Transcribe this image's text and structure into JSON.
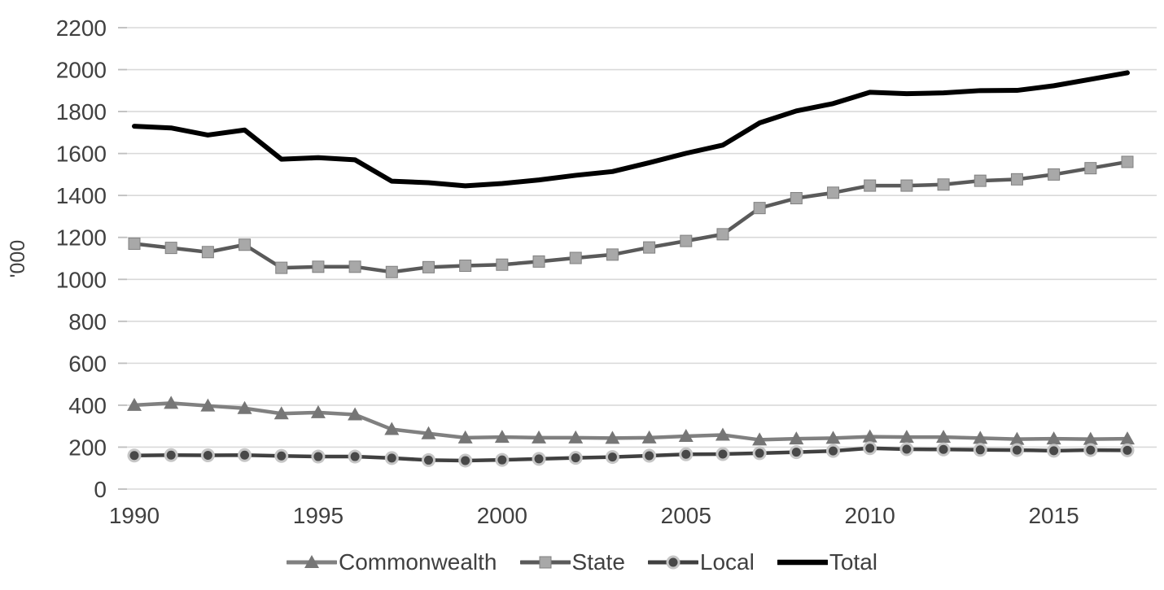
{
  "chart_data": {
    "type": "line",
    "title": "",
    "xlabel": "",
    "ylabel": "'000",
    "ylim": [
      0,
      2200
    ],
    "y_ticks": [
      0,
      200,
      400,
      600,
      800,
      1000,
      1200,
      1400,
      1600,
      1800,
      2000,
      2200
    ],
    "x": [
      1990,
      1991,
      1992,
      1993,
      1994,
      1995,
      1996,
      1997,
      1998,
      1999,
      2000,
      2001,
      2002,
      2003,
      2004,
      2005,
      2006,
      2007,
      2008,
      2009,
      2010,
      2011,
      2012,
      2013,
      2014,
      2015,
      2016,
      2017
    ],
    "x_ticks": [
      1990,
      1995,
      2000,
      2005,
      2010,
      2015
    ],
    "grid": "horizontal",
    "legend_position": "bottom",
    "series": [
      {
        "name": "Commonwealth",
        "marker": "triangle",
        "line_color": "#808080",
        "marker_color": "#767676",
        "line_width": 4.5,
        "values": [
          400,
          410,
          397,
          385,
          360,
          365,
          355,
          285,
          265,
          245,
          248,
          245,
          245,
          243,
          245,
          252,
          258,
          235,
          240,
          243,
          250,
          248,
          248,
          243,
          238,
          240,
          238,
          240
        ]
      },
      {
        "name": "State",
        "marker": "square",
        "line_color": "#5a5a5a",
        "marker_color": "#a8a8a8",
        "marker_edge": "#808080",
        "line_width": 4.5,
        "values": [
          1170,
          1150,
          1130,
          1165,
          1055,
          1060,
          1060,
          1035,
          1058,
          1065,
          1070,
          1085,
          1102,
          1118,
          1152,
          1183,
          1215,
          1340,
          1387,
          1413,
          1447,
          1447,
          1452,
          1470,
          1477,
          1500,
          1530,
          1560
        ]
      },
      {
        "name": "Local",
        "marker": "circle",
        "line_color": "#404040",
        "marker_color": "#484848",
        "marker_ring": "#c6c6c6",
        "line_width": 4.5,
        "values": [
          160,
          162,
          161,
          162,
          158,
          155,
          155,
          148,
          138,
          136,
          139,
          144,
          149,
          153,
          159,
          166,
          167,
          171,
          176,
          182,
          195,
          190,
          189,
          187,
          186,
          183,
          186,
          185
        ]
      },
      {
        "name": "Total",
        "marker": "none",
        "line_color": "#000000",
        "line_width": 6,
        "values": [
          1730,
          1722,
          1688,
          1712,
          1573,
          1580,
          1570,
          1468,
          1461,
          1446,
          1457,
          1474,
          1496,
          1514,
          1556,
          1601,
          1640,
          1746,
          1803,
          1838,
          1892,
          1885,
          1889,
          1900,
          1901,
          1923,
          1954,
          1985
        ]
      }
    ]
  },
  "colors": {
    "axis_text": "#404040",
    "gridline": "#d9d9d9",
    "tick": "#bfbfbf",
    "background": "#ffffff"
  }
}
